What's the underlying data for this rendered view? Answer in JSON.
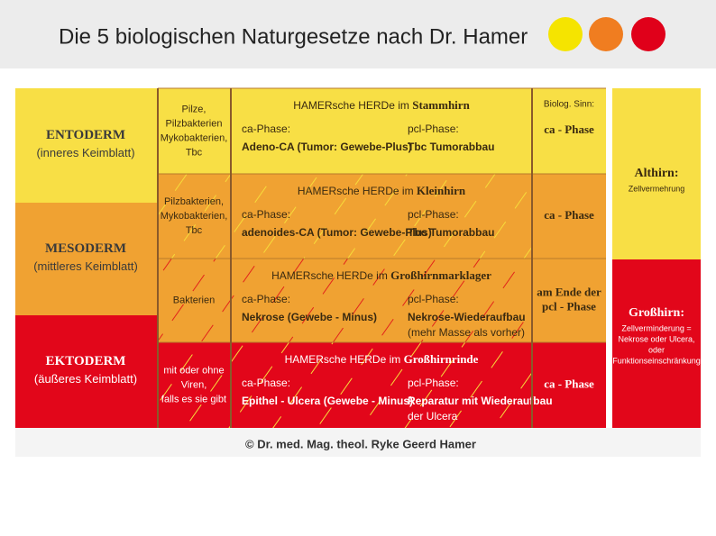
{
  "header": {
    "title": "Die 5 biologischen Naturgesetze nach Dr. Hamer"
  },
  "layers": [
    {
      "name": "ENTODERM",
      "sub": "(inneres Keimblatt)"
    },
    {
      "name": "MESODERM",
      "sub": "(mittleres Keimblatt)"
    },
    {
      "name": "EKTODERM",
      "sub": "(äußeres Keimblatt)"
    }
  ],
  "rows": [
    {
      "microbes": [
        "Pilze,",
        "Pilzbakterien",
        "Mykobakterien,",
        "Tbc"
      ],
      "heading": "HAMERsche HERDe im",
      "region": "Stammhirn",
      "ca_label": "ca-Phase:",
      "ca_text": [
        "Adeno-CA (Tumor: Gewebe-Plus)"
      ],
      "pcl_label": "pcl-Phase:",
      "pcl_text": [
        "Tbc Tumorabbau"
      ],
      "sinn_label": "Biolog. Sinn:",
      "sinn": [
        "ca - Phase"
      ]
    },
    {
      "microbes": [
        "Pilzbakterien,",
        "Mykobakterien,",
        "Tbc"
      ],
      "heading": "HAMERsche HERDe im",
      "region": "Kleinhirn",
      "ca_label": "ca-Phase:",
      "ca_text": [
        "adenoides-CA (Tumor: Gewebe-Plus)"
      ],
      "pcl_label": "pcl-Phase:",
      "pcl_text": [
        "Tbc Tumorabbau"
      ],
      "sinn": [
        "ca - Phase"
      ]
    },
    {
      "microbes": [
        "Bakterien"
      ],
      "heading": "HAMERsche HERDe im",
      "region": "Großhirnmarklager",
      "ca_label": "ca-Phase:",
      "ca_text": [
        "Nekrose (Gewebe - Minus)"
      ],
      "pcl_label": "pcl-Phase:",
      "pcl_text": [
        "Nekrose-Wiederaufbau",
        "(mehr Masse als vorher)"
      ],
      "sinn": [
        "am Ende der",
        "pcl - Phase"
      ]
    },
    {
      "microbes": [
        "mit oder ohne",
        "Viren,",
        "falls es sie gibt"
      ],
      "heading": "HAMERsche HERDe im",
      "region": "Großhirnrinde",
      "ca_label": "ca-Phase:",
      "ca_text": [
        "Epithel - Ulcera (Gewebe - Minus)"
      ],
      "pcl_label": "pcl-Phase:",
      "pcl_text": [
        "Reparatur mit Wiederaufbau",
        "der Ulcera"
      ],
      "sinn": [
        "ca - Phase"
      ]
    }
  ],
  "brain": [
    {
      "title": "Althirn:",
      "lines": [
        "Zellvermehrung"
      ]
    },
    {
      "title": "Großhirn:",
      "lines": [
        "Zellverminderung =",
        "Nekrose oder Ulcera,",
        "oder",
        "Funktionseinschränkung"
      ]
    }
  ],
  "footer": {
    "copyright": "© Dr. med. Mag. theol. Ryke Geerd Hamer"
  }
}
